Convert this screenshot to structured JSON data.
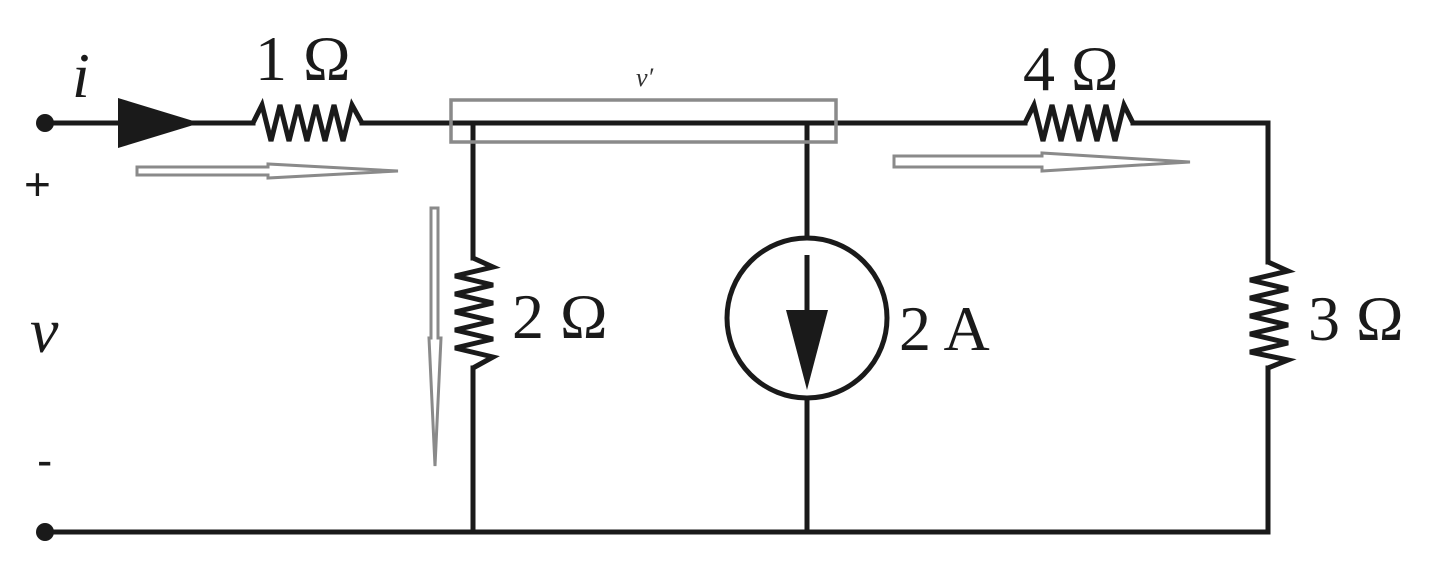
{
  "terminals": {
    "current_label": "i",
    "voltage_label": "v",
    "plus_sign": "+",
    "minus_sign": "-"
  },
  "node": {
    "label": "v′"
  },
  "components": {
    "series_resistor": "1 Ω",
    "shunt_resistor": "2 Ω",
    "current_source": "2 A",
    "right_series_resistor": "4 Ω",
    "load_resistor": "3 Ω"
  },
  "colors": {
    "circuit": "#1a1a1a",
    "current_flow_arrows": "#8a8a8a"
  }
}
